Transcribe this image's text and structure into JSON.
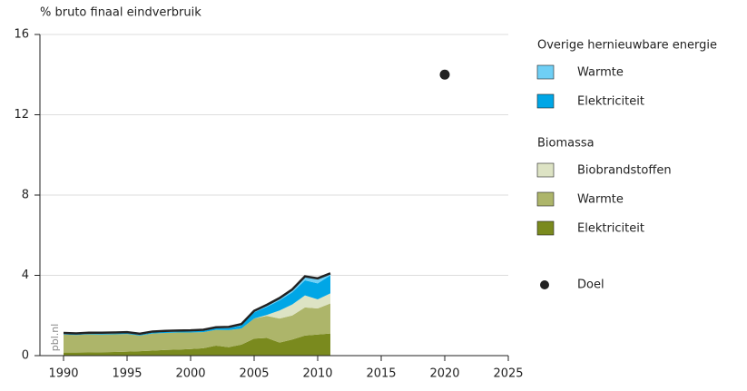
{
  "chart_data": {
    "type": "area",
    "y_label": "% bruto finaal eindverbruik",
    "watermark": "pbl.nl",
    "x": [
      1990,
      1991,
      1992,
      1993,
      1994,
      1995,
      1996,
      1997,
      1998,
      1999,
      2000,
      2001,
      2002,
      2003,
      2004,
      2005,
      2006,
      2007,
      2008,
      2009,
      2010,
      2011
    ],
    "xlim": [
      1990,
      2025
    ],
    "xticks": [
      1990,
      1995,
      2000,
      2005,
      2010,
      2015,
      2020,
      2025
    ],
    "ylim": [
      0,
      16
    ],
    "yticks": [
      0,
      4,
      8,
      12,
      16
    ],
    "grid": true,
    "series": [
      {
        "name": "Elektriciteit",
        "group": "Biomassa",
        "color": "#7a8a1e",
        "values": [
          0.15,
          0.15,
          0.16,
          0.17,
          0.18,
          0.2,
          0.22,
          0.25,
          0.28,
          0.3,
          0.33,
          0.37,
          0.5,
          0.42,
          0.55,
          0.85,
          0.88,
          0.65,
          0.8,
          1.0,
          1.05,
          1.1
        ]
      },
      {
        "name": "Warmte",
        "group": "Biomassa",
        "color": "#adb56a",
        "values": [
          0.9,
          0.88,
          0.9,
          0.88,
          0.88,
          0.88,
          0.78,
          0.85,
          0.85,
          0.85,
          0.82,
          0.8,
          0.78,
          0.85,
          0.8,
          1.0,
          1.1,
          1.2,
          1.2,
          1.4,
          1.3,
          1.5
        ]
      },
      {
        "name": "Biobrandstoffen",
        "group": "Biomassa",
        "color": "#dde3c4",
        "values": [
          0,
          0,
          0,
          0,
          0,
          0,
          0,
          0,
          0,
          0,
          0,
          0,
          0,
          0,
          0,
          0,
          0.05,
          0.4,
          0.55,
          0.6,
          0.45,
          0.5
        ]
      },
      {
        "name": "Elektriciteit",
        "group": "Overige hernieuwbare energie",
        "color": "#00a6e6",
        "values": [
          0.03,
          0.03,
          0.03,
          0.04,
          0.04,
          0.04,
          0.04,
          0.05,
          0.05,
          0.05,
          0.06,
          0.07,
          0.08,
          0.1,
          0.15,
          0.3,
          0.4,
          0.5,
          0.6,
          0.75,
          0.8,
          0.9
        ]
      },
      {
        "name": "Warmte",
        "group": "Overige hernieuwbare energie",
        "color": "#6fcff5",
        "values": [
          0.05,
          0.05,
          0.05,
          0.05,
          0.05,
          0.05,
          0.05,
          0.05,
          0.05,
          0.05,
          0.05,
          0.05,
          0.05,
          0.06,
          0.07,
          0.08,
          0.1,
          0.12,
          0.15,
          0.2,
          0.25,
          0.1
        ]
      }
    ],
    "target": {
      "name": "Doel",
      "x": 2020,
      "value": 14,
      "color": "#222"
    }
  }
}
